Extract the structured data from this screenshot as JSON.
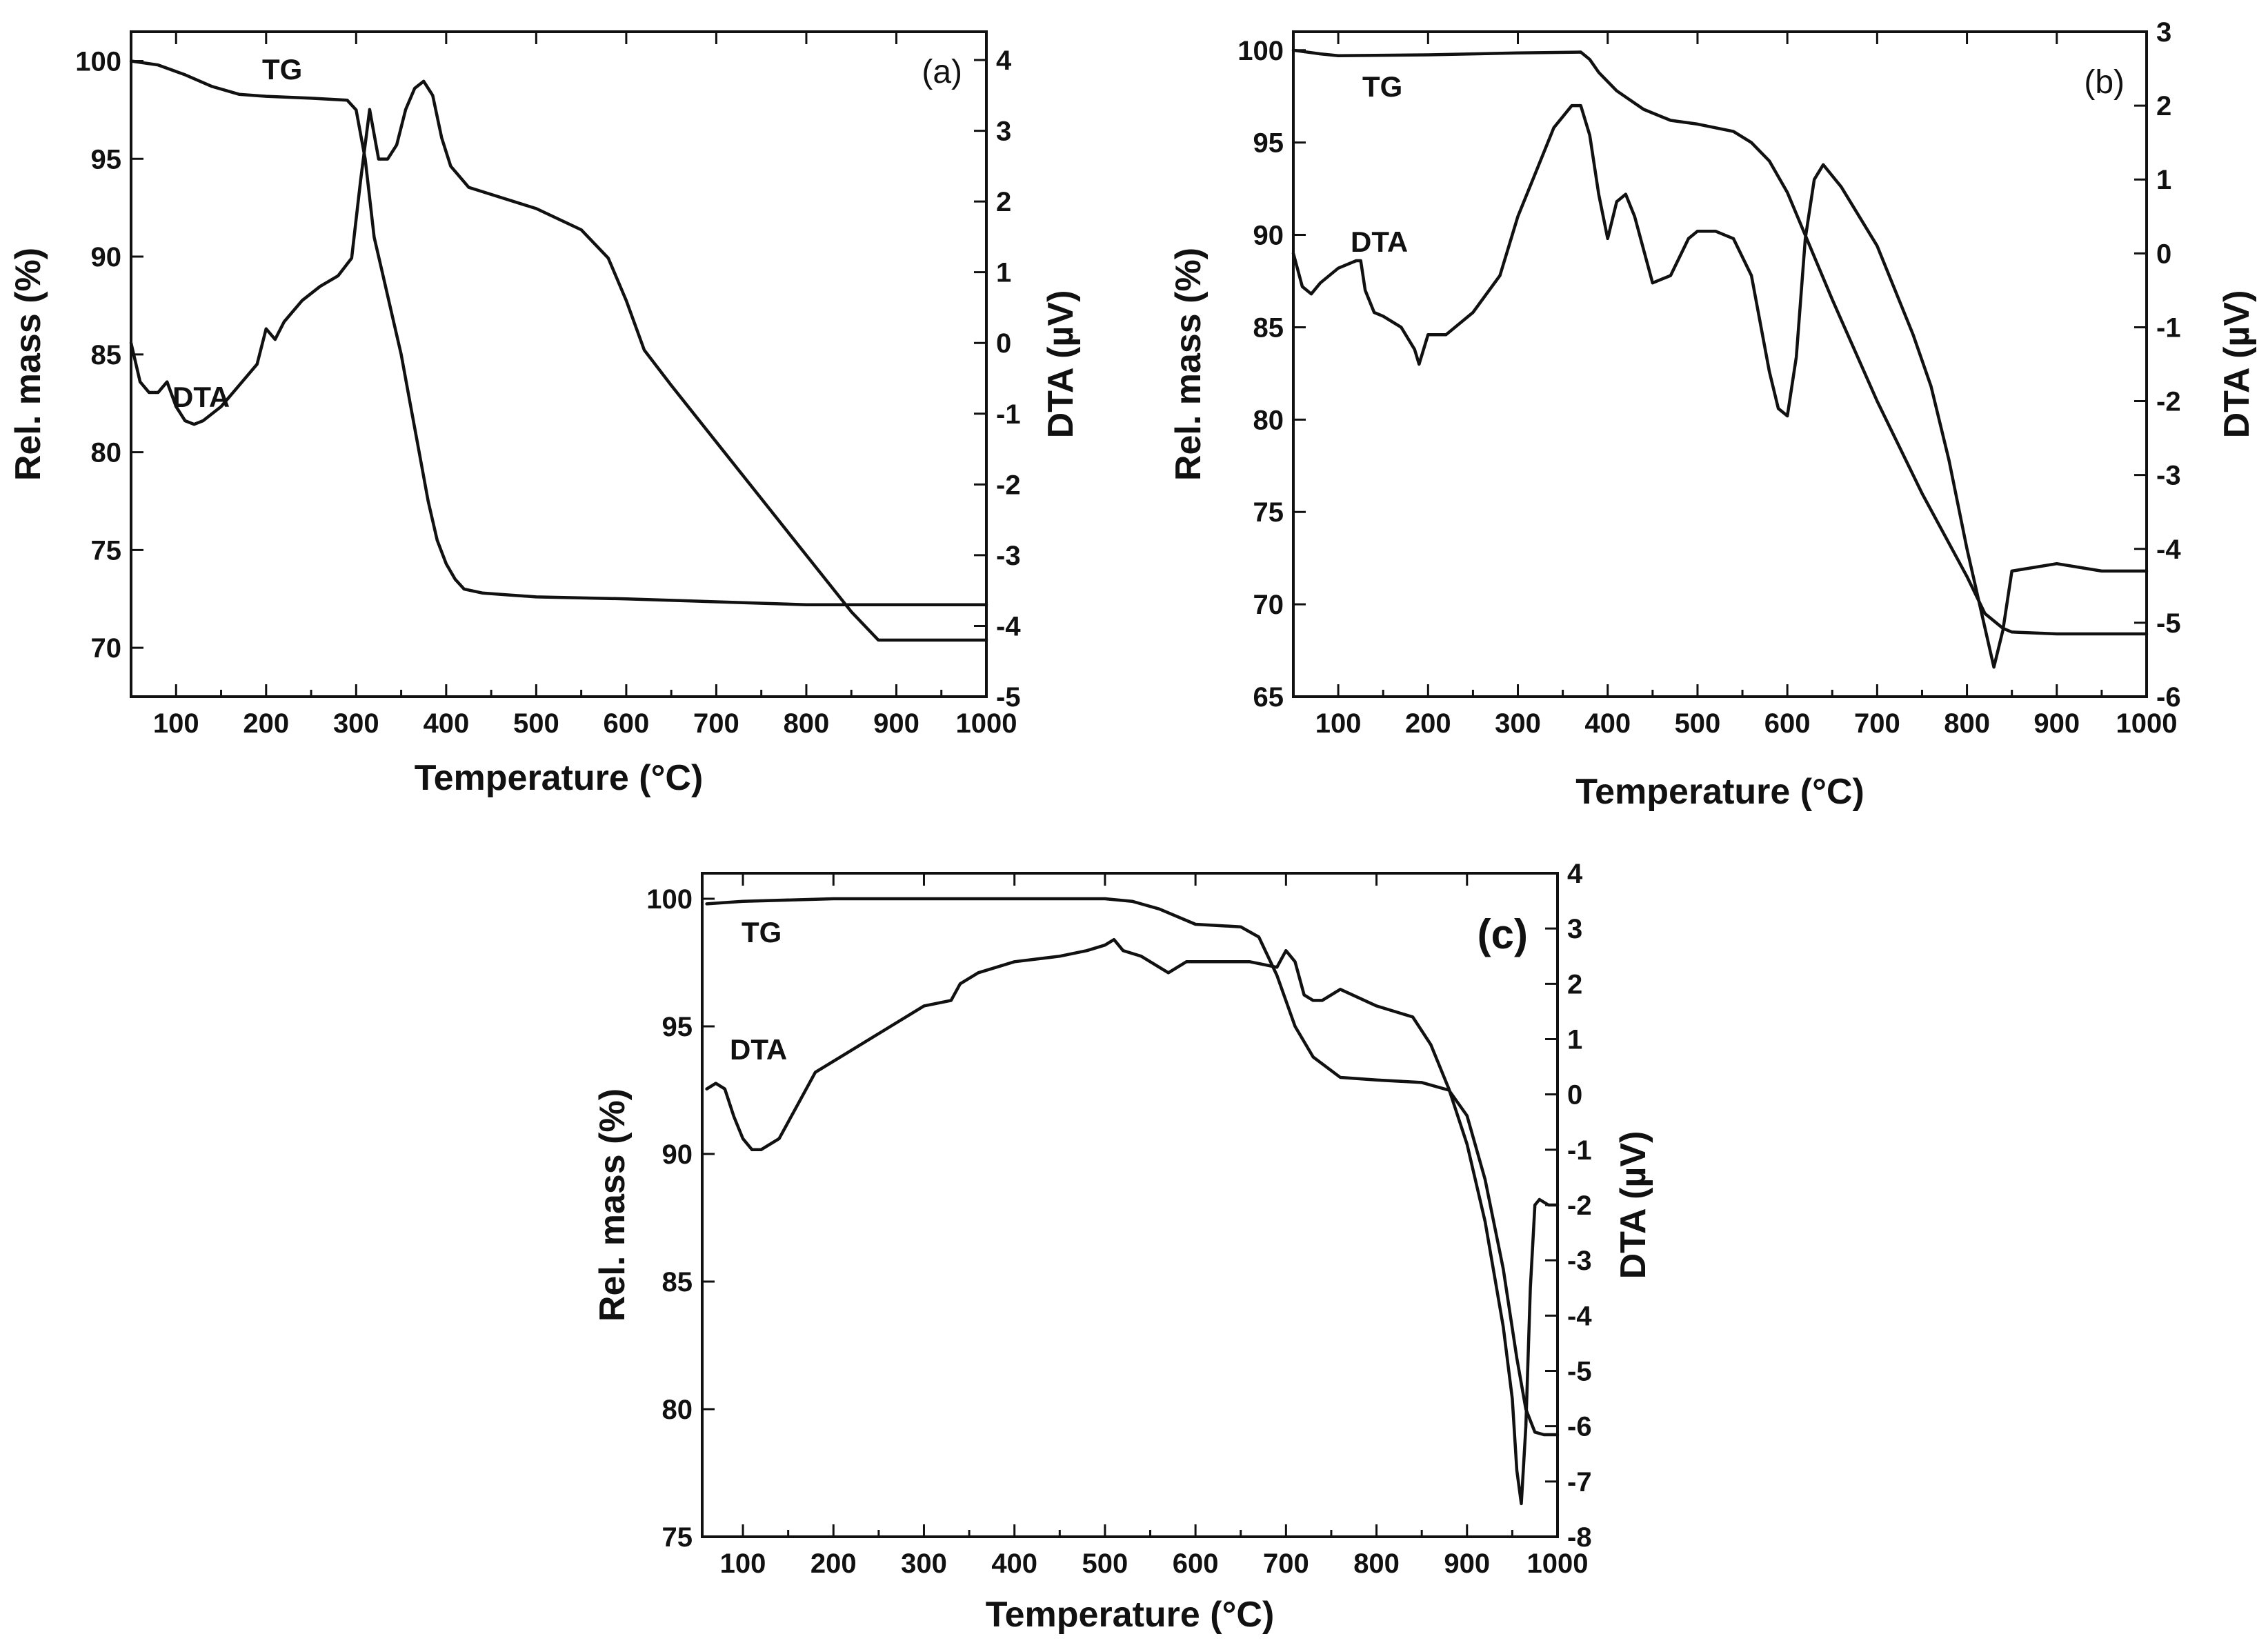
{
  "chart_data": [
    {
      "type": "line",
      "panel_label": "(a)",
      "xlabel": "Temperature (°C)",
      "ylabel": "Rel. mass (%)",
      "y2label": "DTA (µV)",
      "xlim": [
        50,
        1000
      ],
      "ylim": [
        67.5,
        101.5
      ],
      "y2lim": [
        -5,
        4.4
      ],
      "x_ticks": [
        100,
        200,
        300,
        400,
        500,
        600,
        700,
        800,
        900,
        1000
      ],
      "y_ticks": [
        70,
        75,
        80,
        85,
        90,
        95,
        100
      ],
      "y2_ticks": [
        -5,
        -4,
        -3,
        -2,
        -1,
        0,
        1,
        2,
        3,
        4
      ],
      "series": [
        {
          "name": "TG",
          "axis": "left",
          "x": [
            50,
            80,
            110,
            140,
            170,
            200,
            250,
            290,
            300,
            310,
            320,
            330,
            340,
            350,
            360,
            370,
            380,
            390,
            400,
            410,
            420,
            440,
            470,
            500,
            600,
            700,
            800,
            900,
            1000
          ],
          "y": [
            100,
            99.8,
            99.3,
            98.7,
            98.3,
            98.2,
            98.1,
            98.0,
            97.5,
            95.0,
            91.0,
            89.0,
            87.0,
            85.0,
            82.5,
            80.0,
            77.5,
            75.5,
            74.3,
            73.5,
            73.0,
            72.8,
            72.7,
            72.6,
            72.5,
            72.35,
            72.2,
            72.2,
            72.2
          ]
        },
        {
          "name": "DTA",
          "axis": "right",
          "x": [
            50,
            60,
            70,
            80,
            90,
            100,
            110,
            120,
            130,
            150,
            170,
            190,
            200,
            210,
            220,
            240,
            260,
            280,
            295,
            305,
            315,
            325,
            335,
            345,
            355,
            365,
            375,
            385,
            395,
            405,
            425,
            450,
            500,
            550,
            580,
            600,
            620,
            650,
            700,
            750,
            800,
            850,
            880,
            900,
            950,
            1000
          ],
          "y": [
            0,
            -0.55,
            -0.7,
            -0.7,
            -0.55,
            -0.9,
            -1.1,
            -1.15,
            -1.1,
            -0.9,
            -0.6,
            -0.3,
            0.2,
            0.05,
            0.3,
            0.6,
            0.8,
            0.95,
            1.2,
            2.3,
            3.3,
            2.6,
            2.6,
            2.8,
            3.3,
            3.6,
            3.7,
            3.5,
            2.9,
            2.5,
            2.2,
            2.1,
            1.9,
            1.6,
            1.2,
            0.6,
            -0.1,
            -0.6,
            -1.4,
            -2.2,
            -3.0,
            -3.8,
            -4.2,
            -4.2,
            -4.2,
            -4.2
          ]
        }
      ],
      "annotations": [
        "TG",
        "DTA"
      ]
    },
    {
      "type": "line",
      "panel_label": "(b)",
      "xlabel": "Temperature (°C)",
      "ylabel": "Rel. mass (%)",
      "y2label": "DTA (µV)",
      "xlim": [
        50,
        1000
      ],
      "ylim": [
        65,
        101
      ],
      "y2lim": [
        -6,
        3
      ],
      "x_ticks": [
        100,
        200,
        300,
        400,
        500,
        600,
        700,
        800,
        900,
        1000
      ],
      "y_ticks": [
        65,
        70,
        75,
        80,
        85,
        90,
        95,
        100
      ],
      "y2_ticks": [
        -6,
        -5,
        -4,
        -3,
        -2,
        -1,
        0,
        1,
        2,
        3
      ],
      "series": [
        {
          "name": "TG",
          "axis": "left",
          "x": [
            50,
            80,
            100,
            200,
            300,
            370,
            380,
            390,
            410,
            440,
            470,
            500,
            540,
            560,
            580,
            600,
            650,
            700,
            750,
            800,
            820,
            840,
            850,
            900,
            1000
          ],
          "y": [
            100,
            99.8,
            99.7,
            99.75,
            99.85,
            99.9,
            99.5,
            98.8,
            97.8,
            96.8,
            96.2,
            96.0,
            95.6,
            95.0,
            94.0,
            92.3,
            86.5,
            81.0,
            76.0,
            71.5,
            69.5,
            68.7,
            68.5,
            68.4,
            68.4
          ]
        },
        {
          "name": "DTA",
          "axis": "right",
          "x": [
            50,
            60,
            70,
            80,
            100,
            120,
            125,
            130,
            140,
            150,
            170,
            185,
            190,
            200,
            220,
            250,
            280,
            300,
            320,
            340,
            360,
            370,
            380,
            390,
            400,
            410,
            420,
            430,
            450,
            470,
            490,
            500,
            520,
            540,
            560,
            580,
            590,
            600,
            610,
            620,
            630,
            640,
            660,
            700,
            740,
            760,
            780,
            800,
            815,
            830,
            840,
            850,
            900,
            950,
            1000
          ],
          "y": [
            0,
            -0.45,
            -0.55,
            -0.4,
            -0.2,
            -0.1,
            -0.1,
            -0.5,
            -0.8,
            -0.85,
            -1.0,
            -1.3,
            -1.5,
            -1.1,
            -1.1,
            -0.8,
            -0.3,
            0.5,
            1.1,
            1.7,
            2.0,
            2.0,
            1.6,
            0.8,
            0.2,
            0.7,
            0.8,
            0.5,
            -0.4,
            -0.3,
            0.2,
            0.3,
            0.3,
            0.2,
            -0.3,
            -1.6,
            -2.1,
            -2.2,
            -1.4,
            0.2,
            1.0,
            1.2,
            0.9,
            0.1,
            -1.1,
            -1.8,
            -2.8,
            -4.0,
            -4.8,
            -5.6,
            -5.1,
            -4.3,
            -4.2,
            -4.3,
            -4.3
          ]
        }
      ],
      "annotations": [
        "TG",
        "DTA"
      ]
    },
    {
      "type": "line",
      "panel_label": "(c)",
      "xlabel": "Temperature (°C)",
      "ylabel": "Rel. mass (%)",
      "y2label": "DTA (µV)",
      "xlim": [
        55,
        1000
      ],
      "ylim": [
        75,
        101
      ],
      "y2lim": [
        -8,
        4
      ],
      "x_ticks": [
        100,
        200,
        300,
        400,
        500,
        600,
        700,
        800,
        900,
        1000
      ],
      "y_ticks": [
        75,
        80,
        85,
        90,
        95,
        100
      ],
      "y2_ticks": [
        -8,
        -7,
        -6,
        -5,
        -4,
        -3,
        -2,
        -1,
        0,
        1,
        2,
        3,
        4
      ],
      "series": [
        {
          "name": "TG",
          "axis": "left",
          "x": [
            60,
            100,
            200,
            300,
            400,
            500,
            530,
            560,
            600,
            650,
            670,
            690,
            710,
            730,
            760,
            800,
            850,
            880,
            900,
            920,
            940,
            955,
            965,
            975,
            985,
            1000
          ],
          "y": [
            99.8,
            99.9,
            100,
            100,
            100,
            100,
            99.9,
            99.6,
            99.0,
            98.9,
            98.5,
            97.0,
            95.0,
            93.8,
            93.0,
            92.9,
            92.8,
            92.5,
            91.5,
            89.0,
            85.5,
            82.0,
            80.0,
            79.1,
            79.0,
            79.0
          ]
        },
        {
          "name": "DTA",
          "axis": "right",
          "x": [
            60,
            70,
            80,
            90,
            100,
            110,
            120,
            140,
            160,
            180,
            200,
            250,
            300,
            330,
            340,
            360,
            400,
            450,
            480,
            500,
            510,
            520,
            540,
            570,
            590,
            620,
            660,
            690,
            700,
            710,
            720,
            730,
            740,
            760,
            800,
            840,
            860,
            880,
            900,
            920,
            940,
            950,
            955,
            960,
            965,
            970,
            975,
            980,
            990,
            1000
          ],
          "y": [
            0.1,
            0.2,
            0.1,
            -0.4,
            -0.8,
            -1.0,
            -1.0,
            -0.8,
            -0.2,
            0.4,
            0.6,
            1.1,
            1.6,
            1.7,
            2.0,
            2.2,
            2.4,
            2.5,
            2.6,
            2.7,
            2.8,
            2.6,
            2.5,
            2.2,
            2.4,
            2.4,
            2.4,
            2.3,
            2.6,
            2.4,
            1.8,
            1.7,
            1.7,
            1.9,
            1.6,
            1.4,
            0.9,
            0.1,
            -0.9,
            -2.3,
            -4.2,
            -5.5,
            -6.8,
            -7.4,
            -6.0,
            -3.5,
            -2.0,
            -1.9,
            -2.0,
            -2.0
          ]
        }
      ],
      "annotations": [
        "TG",
        "DTA"
      ]
    }
  ]
}
